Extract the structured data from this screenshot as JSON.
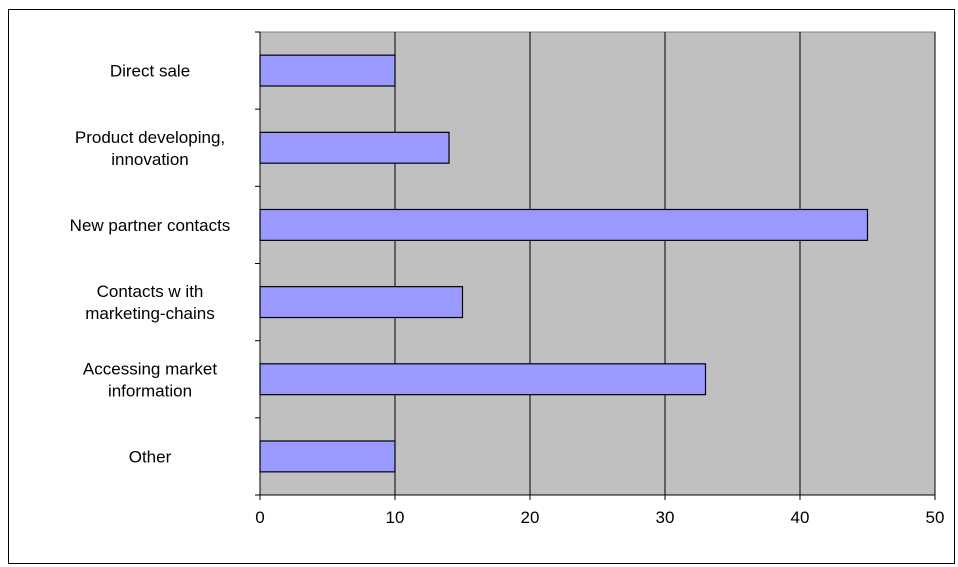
{
  "chart_data": {
    "type": "bar",
    "orientation": "horizontal",
    "title": "",
    "xlabel": "",
    "ylabel": "",
    "categories": [
      [
        "Direct sale"
      ],
      [
        "Product developing,",
        "innovation"
      ],
      [
        "New  partner contacts"
      ],
      [
        "Contacts w ith",
        "marketing-chains"
      ],
      [
        "Accessing market",
        "information"
      ],
      [
        "Other"
      ]
    ],
    "values": [
      10,
      14,
      45,
      15,
      33,
      10
    ],
    "xlim": [
      0,
      50
    ],
    "xticks": [
      0,
      10,
      20,
      30,
      40,
      50
    ],
    "grid": "vertical",
    "legend": "none",
    "colors": {
      "plot_background": "#c0c0c0",
      "bar_fill": "#9999ff",
      "bar_stroke": "#000000",
      "grid": "#000000"
    }
  }
}
